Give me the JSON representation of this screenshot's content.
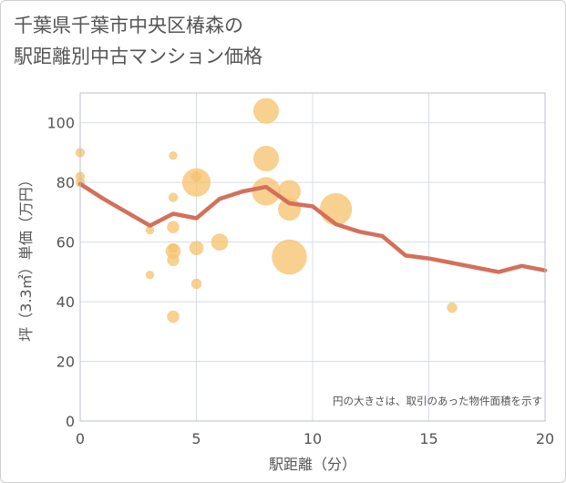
{
  "title_line1": "千葉県千葉市中央区椿森の",
  "title_line2": "駅距離別中古マンション価格",
  "colors": {
    "bubble": "#f5c26b",
    "line": "#d4705a",
    "grid": "#d7dde4",
    "plot_border": "#b8c0c8"
  },
  "chart_data": {
    "type": "scatter",
    "xlabel": "駅距離（分）",
    "ylabel": "坪（3.3㎡）単価（万円）",
    "xlim": [
      0,
      20
    ],
    "ylim": [
      0,
      110
    ],
    "xticks": [
      0,
      5,
      10,
      15,
      20
    ],
    "yticks": [
      0,
      20,
      40,
      60,
      80,
      100
    ],
    "note": "円の大きさは、取引のあった物件面積を示す",
    "bubbles": [
      {
        "x": 0,
        "y": 90,
        "s": 1.0
      },
      {
        "x": 0,
        "y": 82,
        "s": 1.0
      },
      {
        "x": 0,
        "y": 80,
        "s": 1.0
      },
      {
        "x": 3,
        "y": 64,
        "s": 0.9
      },
      {
        "x": 3,
        "y": 49,
        "s": 0.9
      },
      {
        "x": 4,
        "y": 89,
        "s": 0.9
      },
      {
        "x": 4,
        "y": 75,
        "s": 1.0
      },
      {
        "x": 4,
        "y": 65,
        "s": 1.3
      },
      {
        "x": 4,
        "y": 58,
        "s": 1.0
      },
      {
        "x": 4,
        "y": 57,
        "s": 1.6
      },
      {
        "x": 4,
        "y": 54,
        "s": 1.3
      },
      {
        "x": 4,
        "y": 35,
        "s": 1.3
      },
      {
        "x": 5,
        "y": 82,
        "s": 1.1
      },
      {
        "x": 5,
        "y": 80,
        "s": 3.0
      },
      {
        "x": 5,
        "y": 58,
        "s": 1.5
      },
      {
        "x": 5,
        "y": 46,
        "s": 1.1
      },
      {
        "x": 6,
        "y": 60,
        "s": 1.8
      },
      {
        "x": 8,
        "y": 104,
        "s": 2.7
      },
      {
        "x": 8,
        "y": 88,
        "s": 2.7
      },
      {
        "x": 8,
        "y": 77,
        "s": 3.0
      },
      {
        "x": 9,
        "y": 77,
        "s": 2.4
      },
      {
        "x": 9,
        "y": 71,
        "s": 2.4
      },
      {
        "x": 9,
        "y": 55,
        "s": 3.7
      },
      {
        "x": 11,
        "y": 71,
        "s": 3.4
      },
      {
        "x": 16,
        "y": 38,
        "s": 1.1
      }
    ],
    "trend": {
      "x": [
        0,
        1,
        2,
        3,
        4,
        5,
        6,
        7,
        8,
        9,
        10,
        11,
        12,
        13,
        14,
        15,
        16,
        17,
        18,
        19,
        20
      ],
      "y": [
        79.5,
        74.5,
        70,
        65.5,
        69.5,
        68,
        74.5,
        77,
        78.5,
        73,
        72,
        66,
        63.5,
        62,
        55.5,
        54.5,
        53,
        51.5,
        50,
        52,
        50.5
      ]
    }
  }
}
